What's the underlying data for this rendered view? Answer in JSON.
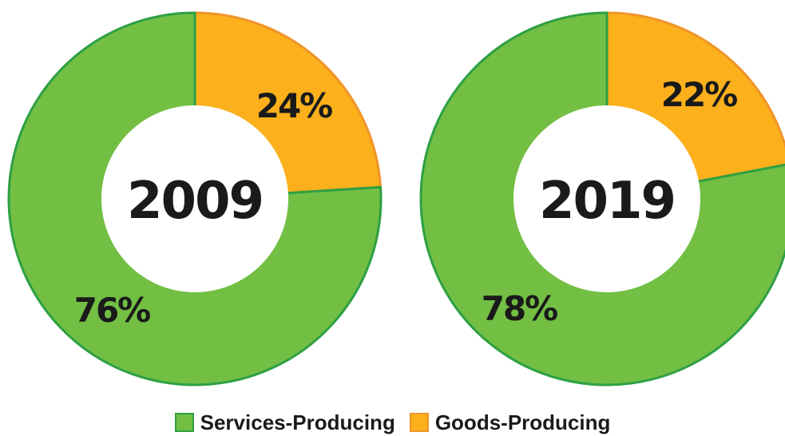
{
  "chart_data": [
    {
      "type": "pie",
      "title": "2009",
      "categories": [
        "Goods-Producing",
        "Services-Producing"
      ],
      "values": [
        24,
        76
      ],
      "value_labels": [
        "24%",
        "76%"
      ]
    },
    {
      "type": "pie",
      "title": "2019",
      "categories": [
        "Goods-Producing",
        "Services-Producing"
      ],
      "values": [
        22,
        78
      ],
      "value_labels": [
        "22%",
        "78%"
      ]
    }
  ],
  "colors": {
    "services_fill": "#72bf44",
    "services_stroke": "#2ea043",
    "goods_fill": "#fbb01c",
    "goods_stroke": "#f0942a"
  },
  "legend": {
    "services_label": "Services-Producing",
    "goods_label": "Goods-Producing",
    "placement": "bottom-center"
  }
}
